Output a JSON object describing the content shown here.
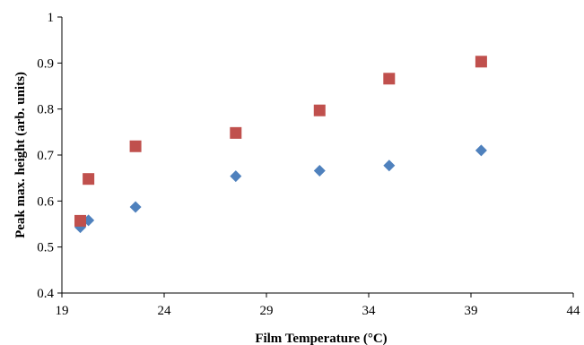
{
  "chart_data": {
    "type": "scatter",
    "xlabel": "Film Temperature (°C)",
    "ylabel": "Peak max. height (arb. units)",
    "xlim": [
      19,
      44
    ],
    "ylim": [
      0.4,
      1.0
    ],
    "x_ticks": [
      19,
      24,
      29,
      34,
      39,
      44
    ],
    "x_tick_labels": [
      "19",
      "24",
      "29",
      "34",
      "39",
      "44"
    ],
    "y_ticks": [
      0.4,
      0.5,
      0.6,
      0.7,
      0.8,
      0.9,
      1.0
    ],
    "y_tick_labels": [
      "0.4",
      "0.5",
      "0.6",
      "0.7",
      "0.8",
      "0.9",
      "1"
    ],
    "grid": false,
    "legend": "none",
    "series": [
      {
        "marker": "diamond",
        "color": "#4F81BD",
        "x": [
          19.9,
          20.3,
          22.6,
          27.5,
          31.6,
          35.0,
          39.5
        ],
        "y": [
          0.543,
          0.558,
          0.587,
          0.654,
          0.666,
          0.677,
          0.71
        ]
      },
      {
        "marker": "square",
        "color": "#C0504D",
        "x": [
          19.9,
          20.3,
          22.6,
          27.5,
          31.6,
          35.0,
          39.5
        ],
        "y": [
          0.557,
          0.648,
          0.719,
          0.748,
          0.797,
          0.866,
          0.903
        ]
      }
    ]
  }
}
